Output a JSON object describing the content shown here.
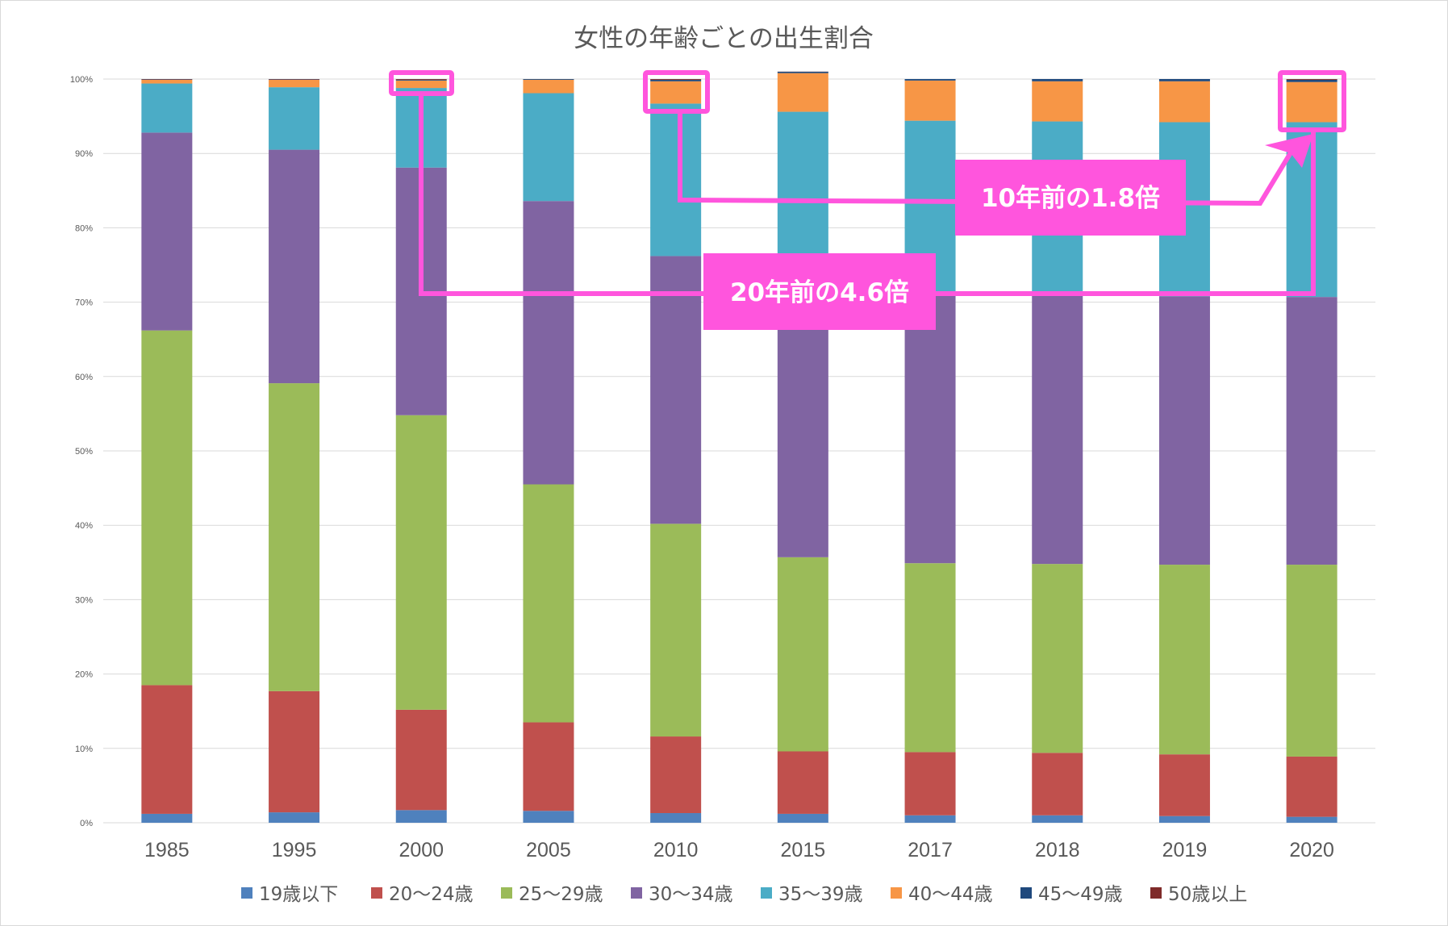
{
  "chart_data": {
    "type": "bar",
    "stacked": true,
    "title": "女性の年齢ごとの出生割合",
    "xlabel": "",
    "ylabel": "",
    "ylim": [
      0,
      100
    ],
    "yticks": [
      {
        "value": 0,
        "label": "0%"
      },
      {
        "value": 10,
        "label": "10%"
      },
      {
        "value": 20,
        "label": "20%"
      },
      {
        "value": 30,
        "label": "30%"
      },
      {
        "value": 40,
        "label": "40%"
      },
      {
        "value": 50,
        "label": "50%"
      },
      {
        "value": 60,
        "label": "60%"
      },
      {
        "value": 70,
        "label": "70%"
      },
      {
        "value": 80,
        "label": "80%"
      },
      {
        "value": 90,
        "label": "90%"
      },
      {
        "value": 100,
        "label": "100%"
      }
    ],
    "grid": true,
    "legend_position": "bottom",
    "categories": [
      "1985",
      "1995",
      "2000",
      "2005",
      "2010",
      "2015",
      "2017",
      "2018",
      "2019",
      "2020"
    ],
    "series": [
      {
        "name": "19歳以下",
        "color": "#4f81bd",
        "values": [
          1.2,
          1.4,
          1.7,
          1.6,
          1.3,
          1.2,
          1.0,
          1.0,
          0.9,
          0.8
        ]
      },
      {
        "name": "20～24歳",
        "color": "#c0504d",
        "values": [
          17.3,
          16.3,
          13.5,
          11.9,
          10.3,
          8.4,
          8.5,
          8.4,
          8.3,
          8.1
        ]
      },
      {
        "name": "25～29歳",
        "color": "#9bbb59",
        "values": [
          47.7,
          41.4,
          39.6,
          32.0,
          28.6,
          26.1,
          25.4,
          25.4,
          25.5,
          25.8
        ]
      },
      {
        "name": "30～34歳",
        "color": "#8064a2",
        "values": [
          26.6,
          31.4,
          33.3,
          38.1,
          36.0,
          36.0,
          36.0,
          36.1,
          36.1,
          36.0
        ]
      },
      {
        "name": "35～39歳",
        "color": "#4bacc6",
        "values": [
          6.6,
          8.4,
          10.7,
          14.5,
          20.5,
          23.9,
          23.5,
          23.4,
          23.4,
          23.5
        ]
      },
      {
        "name": "40～44歳",
        "color": "#f79646",
        "values": [
          0.5,
          1.0,
          1.0,
          1.8,
          3.0,
          5.2,
          5.4,
          5.4,
          5.5,
          5.4
        ]
      },
      {
        "name": "45～49歳",
        "color": "#1f497d",
        "values": [
          0.05,
          0.05,
          0.1,
          0.1,
          0.2,
          0.18,
          0.2,
          0.3,
          0.3,
          0.3
        ]
      },
      {
        "name": "50歳以上",
        "color": "#7f2b2a",
        "values": [
          0.05,
          0.05,
          0.1,
          0.0,
          0.1,
          0.02,
          0.0,
          0.0,
          0.0,
          0.1
        ]
      }
    ]
  },
  "annotations": {
    "color": "#ff55dd",
    "callout_10y": "10年前の1.8倍",
    "callout_20y": "20年前の4.6倍",
    "highlighted_bars": [
      "2000",
      "2010",
      "2020"
    ]
  }
}
